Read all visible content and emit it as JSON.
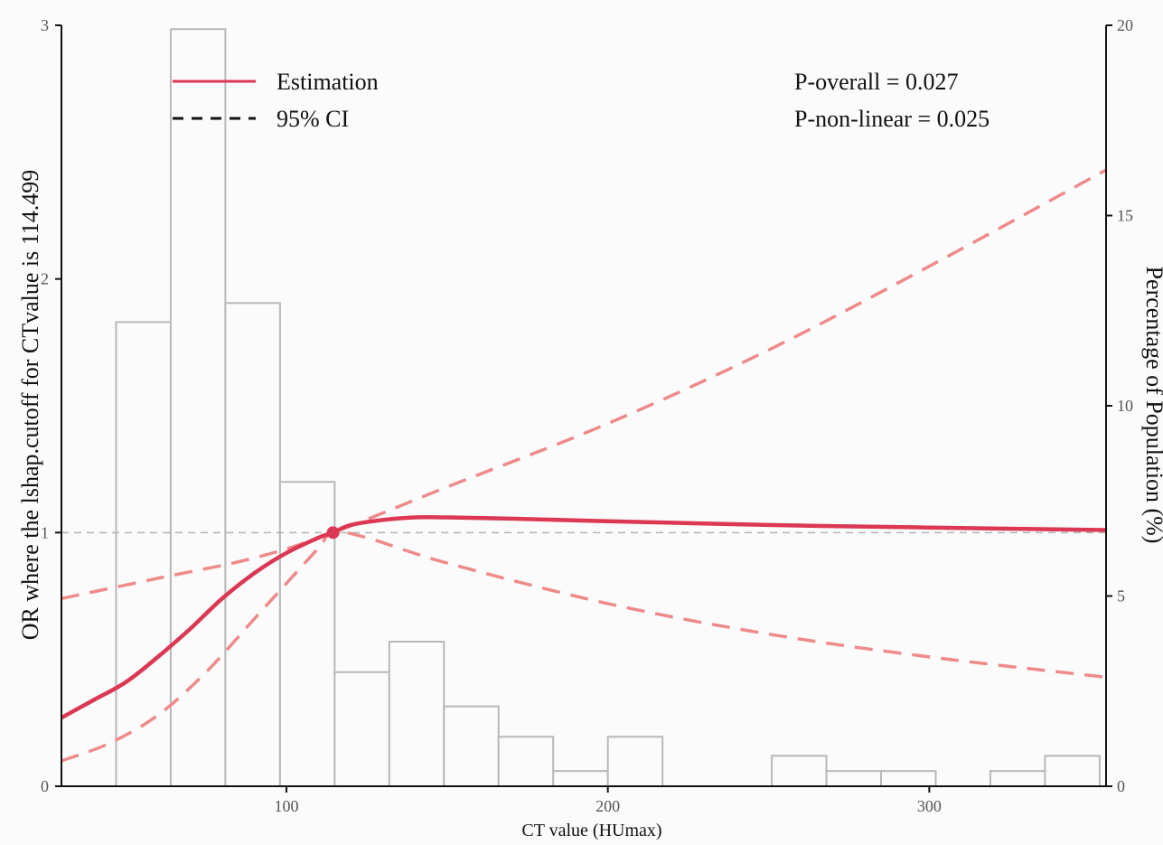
{
  "chart_data": {
    "type": "line",
    "xlabel": "CT value (HUmax)",
    "ylabel": "OR where the lshap.cutoff for CTvalue is 114.499",
    "y2label": "Percentage of Population (%)",
    "xlim": [
      30,
      355
    ],
    "ylim": [
      0,
      3
    ],
    "y2lim": [
      0,
      20
    ],
    "x_ticks": [
      100,
      200,
      300
    ],
    "y_ticks": [
      0,
      1,
      2,
      3
    ],
    "y2_ticks": [
      0,
      5,
      10,
      15,
      20
    ],
    "reference_line": {
      "y": 1,
      "style": "dashed",
      "color": "#b3b3b3"
    },
    "cutoff_point": {
      "x": 114.499,
      "y": 1
    },
    "legend": {
      "position": "top-left",
      "items": [
        {
          "label": "Estimation",
          "style": "solid",
          "color": "#dc3753"
        },
        {
          "label": "95% CI",
          "style": "dashed",
          "color": "#111111"
        }
      ]
    },
    "annotations": [
      "P-overall = 0.027",
      "P-non-linear = 0.025"
    ],
    "histogram": {
      "axis": "right",
      "bin_width": 17,
      "bins_start": [
        47,
        64,
        81,
        98,
        115,
        132,
        149,
        166,
        183,
        200,
        217,
        234,
        251,
        268,
        285,
        302,
        319,
        336
      ],
      "percent": [
        12.2,
        19.9,
        12.7,
        8.0,
        3.0,
        3.8,
        2.1,
        1.3,
        0.4,
        1.3,
        0,
        0,
        0.8,
        0.4,
        0.4,
        0,
        0.4,
        0.8
      ],
      "color": "#b8b8b8"
    },
    "series": [
      {
        "name": "Estimation",
        "style": "solid",
        "color": "#dc3753",
        "x": [
          30,
          40,
          50,
          60,
          70,
          80,
          90,
          100,
          110,
          114.5,
          120,
          130,
          140,
          150,
          170,
          200,
          250,
          300,
          355
        ],
        "y": [
          0.27,
          0.34,
          0.41,
          0.51,
          0.62,
          0.74,
          0.84,
          0.92,
          0.98,
          1.0,
          1.03,
          1.05,
          1.06,
          1.06,
          1.055,
          1.045,
          1.03,
          1.02,
          1.01
        ]
      },
      {
        "name": "95% CI",
        "style": "dashed",
        "color": "#ef8a8a",
        "x": [
          30,
          60,
          90,
          114.5,
          150,
          200,
          250,
          300,
          355
        ],
        "y": [
          0.74,
          0.82,
          0.9,
          1.0,
          1.18,
          1.43,
          1.72,
          2.05,
          2.43
        ]
      },
      {
        "name": "95% CI",
        "style": "dashed",
        "color": "#ef8a8a",
        "x": [
          30,
          45,
          60,
          75,
          90,
          100,
          110,
          114.5,
          125,
          150,
          200,
          250,
          300,
          355
        ],
        "y": [
          0.1,
          0.17,
          0.28,
          0.45,
          0.66,
          0.8,
          0.94,
          1.0,
          0.98,
          0.88,
          0.72,
          0.6,
          0.51,
          0.43
        ]
      }
    ]
  }
}
